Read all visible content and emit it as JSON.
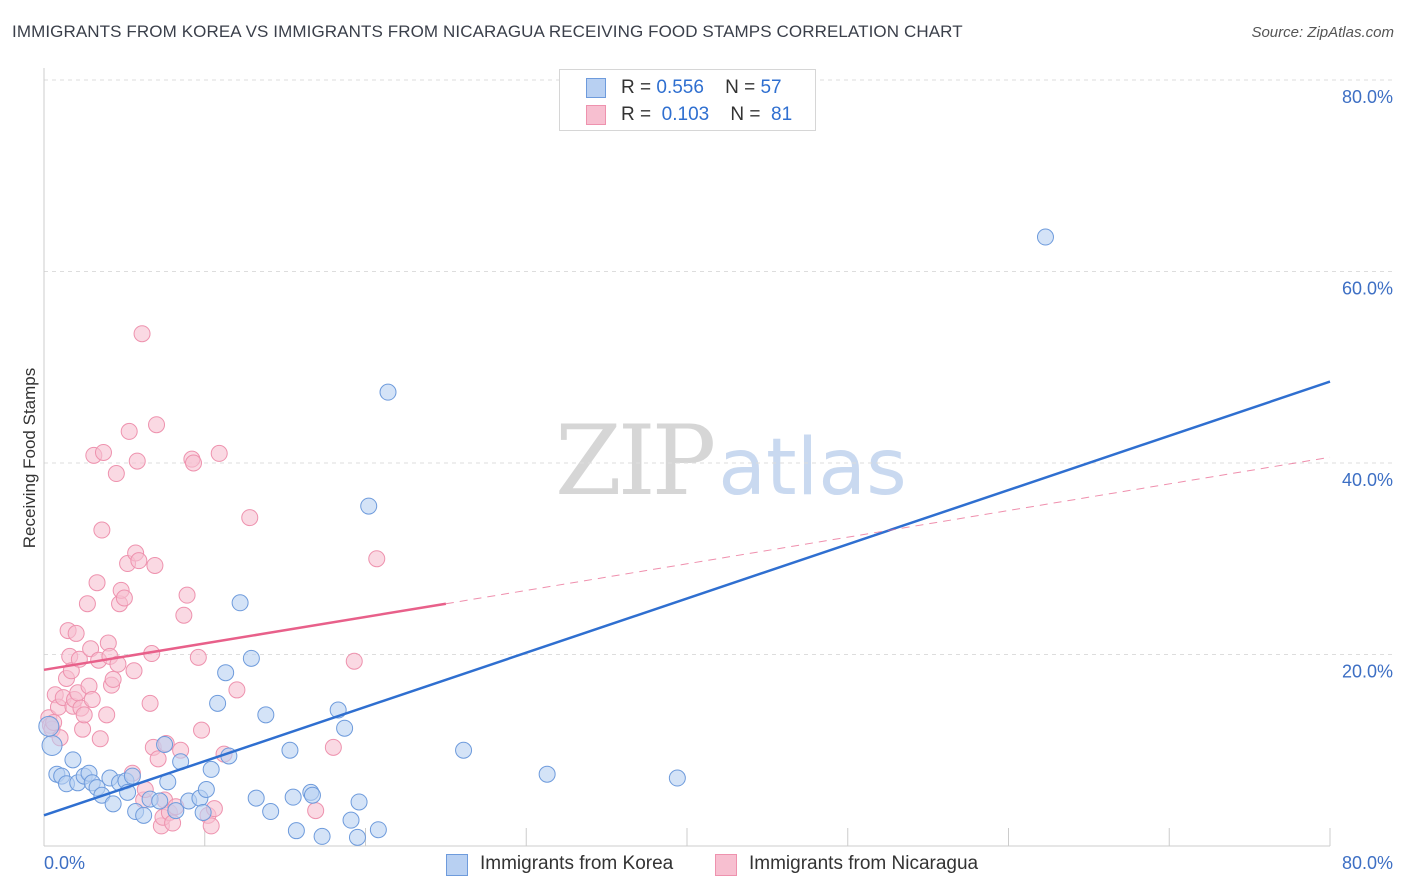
{
  "title": "IMMIGRANTS FROM KOREA VS IMMIGRANTS FROM NICARAGUA RECEIVING FOOD STAMPS CORRELATION CHART",
  "source": "Source: ZipAtlas.com",
  "watermark": {
    "part1": "ZIP",
    "part2": "atlas"
  },
  "legend": {
    "korea": {
      "r_label": "R =",
      "r_value": "0.556",
      "n_label": "N =",
      "n_value": "57"
    },
    "nicaragua": {
      "r_label": "R =",
      "r_value": "0.103",
      "n_label": "N =",
      "n_value": "81"
    }
  },
  "colors": {
    "korea_fill": "#b8d0f2",
    "korea_stroke": "#6e9bdc",
    "korea_line": "#2f6fd0",
    "nicaragua_fill": "#f7bfd0",
    "nicaragua_stroke": "#ee92ae",
    "nicaragua_line": "#e8608a",
    "grid": "#dddddd",
    "tick_label": "#3d6fc4"
  },
  "chart_data": {
    "type": "scatter",
    "title": "IMMIGRANTS FROM KOREA VS IMMIGRANTS FROM NICARAGUA RECEIVING FOOD STAMPS CORRELATION CHART",
    "ylabel": "Receiving Food Stamps",
    "xlabel": "",
    "xlim": [
      0,
      80
    ],
    "ylim": [
      0,
      80
    ],
    "x_tick_labels": {
      "left": "0.0%",
      "right": "80.0%"
    },
    "y_ticks": [
      {
        "value": 20,
        "label": "20.0%"
      },
      {
        "value": 40,
        "label": "40.0%"
      },
      {
        "value": 60,
        "label": "60.0%"
      },
      {
        "value": 80,
        "label": "80.0%"
      }
    ],
    "series": [
      {
        "name": "Immigrants from Korea",
        "R": 0.556,
        "N": 57,
        "trend": {
          "x0": 0,
          "y0": 3.2,
          "x1": 80,
          "y1": 48.5,
          "dashed_extension": false
        },
        "points": [
          [
            0.5,
            10.5
          ],
          [
            0.3,
            12.5
          ],
          [
            0.8,
            7.5
          ],
          [
            1.1,
            7.3
          ],
          [
            1.4,
            6.5
          ],
          [
            1.8,
            9.0
          ],
          [
            2.1,
            6.6
          ],
          [
            2.5,
            7.3
          ],
          [
            2.8,
            7.6
          ],
          [
            3.0,
            6.6
          ],
          [
            3.3,
            6.1
          ],
          [
            3.6,
            5.3
          ],
          [
            4.1,
            7.1
          ],
          [
            4.3,
            4.4
          ],
          [
            4.7,
            6.6
          ],
          [
            5.1,
            6.8
          ],
          [
            5.5,
            7.3
          ],
          [
            5.2,
            5.6
          ],
          [
            5.7,
            3.6
          ],
          [
            6.2,
            3.2
          ],
          [
            6.6,
            4.9
          ],
          [
            7.2,
            4.7
          ],
          [
            7.5,
            10.6
          ],
          [
            7.7,
            6.7
          ],
          [
            8.2,
            3.7
          ],
          [
            8.5,
            8.8
          ],
          [
            9.0,
            4.7
          ],
          [
            9.7,
            5.0
          ],
          [
            10.1,
            5.9
          ],
          [
            9.9,
            3.5
          ],
          [
            10.4,
            8.0
          ],
          [
            10.8,
            14.9
          ],
          [
            11.3,
            18.1
          ],
          [
            11.5,
            9.4
          ],
          [
            12.2,
            25.4
          ],
          [
            12.9,
            19.6
          ],
          [
            13.2,
            5.0
          ],
          [
            13.8,
            13.7
          ],
          [
            14.1,
            3.6
          ],
          [
            15.3,
            10.0
          ],
          [
            15.5,
            5.1
          ],
          [
            15.7,
            1.6
          ],
          [
            16.6,
            5.6
          ],
          [
            16.7,
            5.3
          ],
          [
            17.3,
            1.0
          ],
          [
            18.3,
            14.2
          ],
          [
            18.7,
            12.3
          ],
          [
            19.1,
            2.7
          ],
          [
            19.6,
            4.6
          ],
          [
            19.5,
            0.9
          ],
          [
            20.2,
            35.5
          ],
          [
            20.8,
            1.7
          ],
          [
            21.4,
            47.4
          ],
          [
            26.1,
            10.0
          ],
          [
            31.3,
            7.5
          ],
          [
            39.4,
            7.1
          ],
          [
            62.3,
            63.6
          ]
        ]
      },
      {
        "name": "Immigrants from Nicaragua",
        "R": 0.103,
        "N": 81,
        "trend": {
          "x0": 0,
          "y0": 18.4,
          "x1": 25,
          "y1": 25.3,
          "dashed_to_x": 80,
          "dashed_to_y": 40.6
        },
        "points": [
          [
            0.3,
            13.4
          ],
          [
            0.4,
            12.6
          ],
          [
            0.5,
            12.2
          ],
          [
            0.6,
            12.9
          ],
          [
            0.7,
            15.8
          ],
          [
            0.9,
            14.5
          ],
          [
            1.0,
            11.3
          ],
          [
            1.2,
            15.5
          ],
          [
            1.4,
            17.5
          ],
          [
            1.5,
            22.5
          ],
          [
            1.6,
            19.8
          ],
          [
            1.7,
            18.3
          ],
          [
            1.8,
            14.6
          ],
          [
            1.9,
            15.3
          ],
          [
            2.0,
            22.2
          ],
          [
            2.1,
            16.0
          ],
          [
            2.2,
            19.5
          ],
          [
            2.3,
            14.4
          ],
          [
            2.4,
            12.2
          ],
          [
            2.5,
            13.7
          ],
          [
            2.7,
            25.3
          ],
          [
            2.8,
            16.7
          ],
          [
            2.9,
            20.6
          ],
          [
            3.0,
            15.3
          ],
          [
            3.1,
            40.8
          ],
          [
            3.3,
            27.5
          ],
          [
            3.4,
            19.4
          ],
          [
            3.5,
            11.2
          ],
          [
            3.6,
            33.0
          ],
          [
            3.7,
            41.1
          ],
          [
            3.9,
            13.7
          ],
          [
            4.0,
            21.2
          ],
          [
            4.1,
            19.8
          ],
          [
            4.2,
            16.8
          ],
          [
            4.3,
            17.4
          ],
          [
            4.5,
            38.9
          ],
          [
            4.6,
            19.0
          ],
          [
            4.7,
            25.3
          ],
          [
            4.8,
            26.7
          ],
          [
            5.0,
            25.9
          ],
          [
            5.2,
            29.5
          ],
          [
            5.3,
            43.3
          ],
          [
            5.5,
            7.6
          ],
          [
            5.6,
            18.3
          ],
          [
            5.7,
            30.6
          ],
          [
            5.8,
            40.2
          ],
          [
            5.9,
            29.8
          ],
          [
            6.1,
            53.5
          ],
          [
            6.2,
            4.8
          ],
          [
            6.3,
            5.9
          ],
          [
            6.6,
            14.9
          ],
          [
            6.7,
            20.1
          ],
          [
            6.8,
            10.3
          ],
          [
            6.9,
            29.3
          ],
          [
            7.0,
            44.0
          ],
          [
            7.1,
            9.1
          ],
          [
            7.3,
            2.1
          ],
          [
            7.4,
            3.0
          ],
          [
            7.5,
            4.8
          ],
          [
            7.6,
            10.7
          ],
          [
            7.8,
            3.5
          ],
          [
            8.0,
            2.4
          ],
          [
            8.2,
            4.1
          ],
          [
            8.5,
            10.0
          ],
          [
            8.7,
            24.1
          ],
          [
            8.9,
            26.2
          ],
          [
            9.2,
            40.4
          ],
          [
            9.3,
            40.0
          ],
          [
            9.6,
            19.7
          ],
          [
            9.8,
            12.1
          ],
          [
            10.2,
            3.2
          ],
          [
            10.4,
            2.1
          ],
          [
            10.6,
            3.9
          ],
          [
            10.9,
            41.0
          ],
          [
            11.2,
            9.6
          ],
          [
            12.0,
            16.3
          ],
          [
            12.8,
            34.3
          ],
          [
            16.9,
            3.7
          ],
          [
            18.0,
            10.3
          ],
          [
            19.3,
            19.3
          ],
          [
            20.7,
            30.0
          ]
        ]
      }
    ]
  },
  "bottom_legend": {
    "korea": "Immigrants from Korea",
    "nicaragua": "Immigrants from Nicaragua"
  }
}
